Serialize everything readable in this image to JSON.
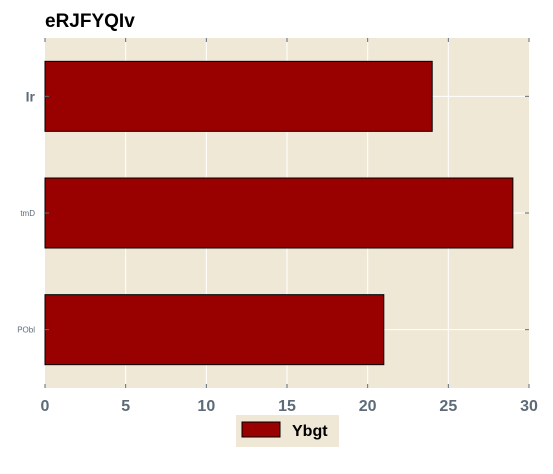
{
  "chart_data": {
    "type": "bar",
    "orientation": "horizontal",
    "title": "eRJFYQIv",
    "categories": [
      "Ir",
      "tmD",
      "PObl"
    ],
    "series": [
      {
        "name": "Ybgt",
        "values": [
          24,
          29,
          21
        ]
      }
    ],
    "xlim": [
      0,
      30
    ],
    "xticks": [
      "0",
      "5",
      "10",
      "15",
      "20",
      "25",
      "30"
    ],
    "grid": true,
    "legend": "bottom-center",
    "colors": {
      "bar": "#990000",
      "plot_background": "#efe8d7",
      "grid": "#ffffff",
      "tick_text": "#5d6b78"
    }
  }
}
